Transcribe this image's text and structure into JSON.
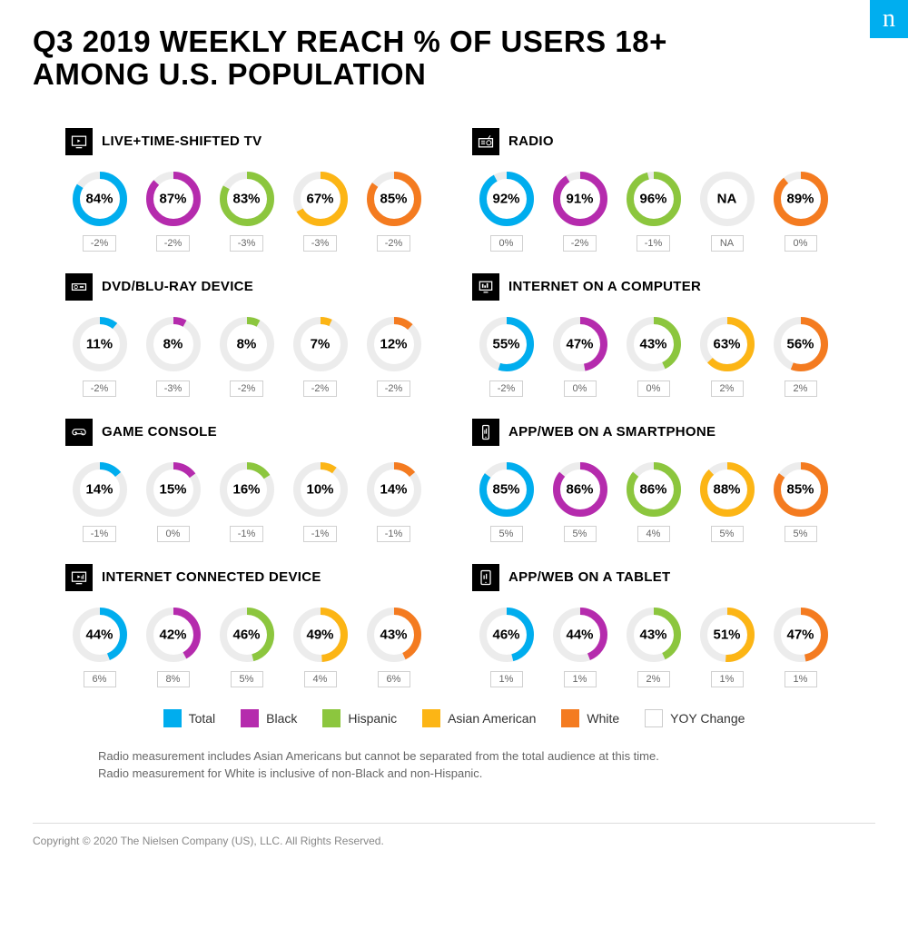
{
  "logo_letter": "n",
  "title": "Q3 2019 WEEKLY REACH % OF USERS 18+ AMONG U.S. POPULATION",
  "colors": {
    "total": "#00adee",
    "black": "#b52bad",
    "hispanic": "#8cc63e",
    "asian": "#fcb515",
    "white": "#f47b20",
    "ring_bg": "#ececec",
    "text": "#000000",
    "yoy_border": "#d0d0d0",
    "yoy_text": "#666666"
  },
  "donut_style": {
    "outer_r": 30,
    "stroke_w": 8,
    "label_fontsize": 15,
    "label_fontweight": 700
  },
  "sections": [
    {
      "icon": "tv",
      "title": "LIVE+TIME-SHIFTED TV",
      "items": [
        {
          "pct": 84,
          "yoy": "-2%",
          "color_key": "total"
        },
        {
          "pct": 87,
          "yoy": "-2%",
          "color_key": "black"
        },
        {
          "pct": 83,
          "yoy": "-3%",
          "color_key": "hispanic"
        },
        {
          "pct": 67,
          "yoy": "-3%",
          "color_key": "asian"
        },
        {
          "pct": 85,
          "yoy": "-2%",
          "color_key": "white"
        }
      ]
    },
    {
      "icon": "radio",
      "title": "RADIO",
      "items": [
        {
          "pct": 92,
          "yoy": "0%",
          "color_key": "total"
        },
        {
          "pct": 91,
          "yoy": "-2%",
          "color_key": "black"
        },
        {
          "pct": 96,
          "yoy": "-1%",
          "color_key": "hispanic"
        },
        {
          "pct": null,
          "label": "NA",
          "yoy": "NA",
          "color_key": "asian"
        },
        {
          "pct": 89,
          "yoy": "0%",
          "color_key": "white"
        }
      ]
    },
    {
      "icon": "dvd",
      "title": "DVD/BLU-RAY DEVICE",
      "items": [
        {
          "pct": 11,
          "yoy": "-2%",
          "color_key": "total"
        },
        {
          "pct": 8,
          "yoy": "-3%",
          "color_key": "black"
        },
        {
          "pct": 8,
          "yoy": "-2%",
          "color_key": "hispanic"
        },
        {
          "pct": 7,
          "yoy": "-2%",
          "color_key": "asian"
        },
        {
          "pct": 12,
          "yoy": "-2%",
          "color_key": "white"
        }
      ]
    },
    {
      "icon": "computer",
      "title": "INTERNET ON A COMPUTER",
      "items": [
        {
          "pct": 55,
          "yoy": "-2%",
          "color_key": "total"
        },
        {
          "pct": 47,
          "yoy": "0%",
          "color_key": "black"
        },
        {
          "pct": 43,
          "yoy": "0%",
          "color_key": "hispanic"
        },
        {
          "pct": 63,
          "yoy": "2%",
          "color_key": "asian"
        },
        {
          "pct": 56,
          "yoy": "2%",
          "color_key": "white"
        }
      ]
    },
    {
      "icon": "console",
      "title": "GAME CONSOLE",
      "items": [
        {
          "pct": 14,
          "yoy": "-1%",
          "color_key": "total"
        },
        {
          "pct": 15,
          "yoy": "0%",
          "color_key": "black"
        },
        {
          "pct": 16,
          "yoy": "-1%",
          "color_key": "hispanic"
        },
        {
          "pct": 10,
          "yoy": "-1%",
          "color_key": "asian"
        },
        {
          "pct": 14,
          "yoy": "-1%",
          "color_key": "white"
        }
      ]
    },
    {
      "icon": "phone",
      "title": "APP/WEB ON A SMARTPHONE",
      "items": [
        {
          "pct": 85,
          "yoy": "5%",
          "color_key": "total"
        },
        {
          "pct": 86,
          "yoy": "5%",
          "color_key": "black"
        },
        {
          "pct": 86,
          "yoy": "4%",
          "color_key": "hispanic"
        },
        {
          "pct": 88,
          "yoy": "5%",
          "color_key": "asian"
        },
        {
          "pct": 85,
          "yoy": "5%",
          "color_key": "white"
        }
      ]
    },
    {
      "icon": "connected",
      "title": "INTERNET CONNECTED DEVICE",
      "items": [
        {
          "pct": 44,
          "yoy": "6%",
          "color_key": "total"
        },
        {
          "pct": 42,
          "yoy": "8%",
          "color_key": "black"
        },
        {
          "pct": 46,
          "yoy": "5%",
          "color_key": "hispanic"
        },
        {
          "pct": 49,
          "yoy": "4%",
          "color_key": "asian"
        },
        {
          "pct": 43,
          "yoy": "6%",
          "color_key": "white"
        }
      ]
    },
    {
      "icon": "tablet",
      "title": "APP/WEB ON A TABLET",
      "items": [
        {
          "pct": 46,
          "yoy": "1%",
          "color_key": "total"
        },
        {
          "pct": 44,
          "yoy": "1%",
          "color_key": "black"
        },
        {
          "pct": 43,
          "yoy": "2%",
          "color_key": "hispanic"
        },
        {
          "pct": 51,
          "yoy": "1%",
          "color_key": "asian"
        },
        {
          "pct": 47,
          "yoy": "1%",
          "color_key": "white"
        }
      ]
    }
  ],
  "legend": [
    {
      "label": "Total",
      "color_key": "total"
    },
    {
      "label": "Black",
      "color_key": "black"
    },
    {
      "label": "Hispanic",
      "color_key": "hispanic"
    },
    {
      "label": "Asian American",
      "color_key": "asian"
    },
    {
      "label": "White",
      "color_key": "white"
    },
    {
      "label": "YOY Change",
      "color_key": null
    }
  ],
  "footnotes": [
    "Radio measurement includes Asian Americans but cannot be separated from the total audience at this time.",
    "Radio measurement for White is inclusive of non-Black and non-Hispanic."
  ],
  "copyright": "Copyright © 2020 The Nielsen Company (US), LLC. All Rights Reserved."
}
